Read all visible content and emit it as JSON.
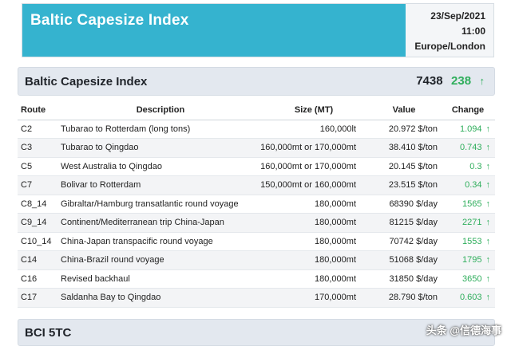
{
  "banner": {
    "title": "Baltic Capesize Index",
    "date": "23/Sep/2021",
    "time": "11:00",
    "timezone": "Europe/London"
  },
  "section": {
    "title": "Baltic Capesize Index",
    "value": "7438",
    "change": "238",
    "arrow": "↑"
  },
  "table": {
    "headers": [
      "Route",
      "Description",
      "Size (MT)",
      "Value",
      "Change"
    ],
    "rows": [
      {
        "route": "C2",
        "description": "Tubarao to Rotterdam (long tons)",
        "size": "160,000lt",
        "value": "20.972 $/ton",
        "change": "1.094",
        "arrow": "↑"
      },
      {
        "route": "C3",
        "description": "Tubarao to Qingdao",
        "size": "160,000mt or 170,000mt",
        "value": "38.410 $/ton",
        "change": "0.743",
        "arrow": "↑"
      },
      {
        "route": "C5",
        "description": "West Australia to Qingdao",
        "size": "160,000mt or 170,000mt",
        "value": "20.145 $/ton",
        "change": "0.3",
        "arrow": "↑"
      },
      {
        "route": "C7",
        "description": "Bolivar to Rotterdam",
        "size": "150,000mt or 160,000mt",
        "value": "23.515 $/ton",
        "change": "0.34",
        "arrow": "↑"
      },
      {
        "route": "C8_14",
        "description": "Gibraltar/Hamburg transatlantic round voyage",
        "size": "180,000mt",
        "value": "68390 $/day",
        "change": "1565",
        "arrow": "↑"
      },
      {
        "route": "C9_14",
        "description": "Continent/Mediterranean trip China-Japan",
        "size": "180,000mt",
        "value": "81215 $/day",
        "change": "2271",
        "arrow": "↑"
      },
      {
        "route": "C10_14",
        "description": "China-Japan transpacific round voyage",
        "size": "180,000mt",
        "value": "70742 $/day",
        "change": "1553",
        "arrow": "↑"
      },
      {
        "route": "C14",
        "description": "China-Brazil round voyage",
        "size": "180,000mt",
        "value": "51068 $/day",
        "change": "1795",
        "arrow": "↑"
      },
      {
        "route": "C16",
        "description": "Revised backhaul",
        "size": "180,000mt",
        "value": "31850 $/day",
        "change": "3650",
        "arrow": "↑"
      },
      {
        "route": "C17",
        "description": "Saldanha Bay to Qingdao",
        "size": "170,000mt",
        "value": "28.790 $/ton",
        "change": "0.603",
        "arrow": "↑"
      }
    ]
  },
  "footer": {
    "title": "BCI 5TC"
  },
  "watermark": "头条 @信德海事",
  "colors": {
    "banner": "#35b3cf",
    "positive": "#2fae5c",
    "section_bg": "#e3e8ef"
  }
}
